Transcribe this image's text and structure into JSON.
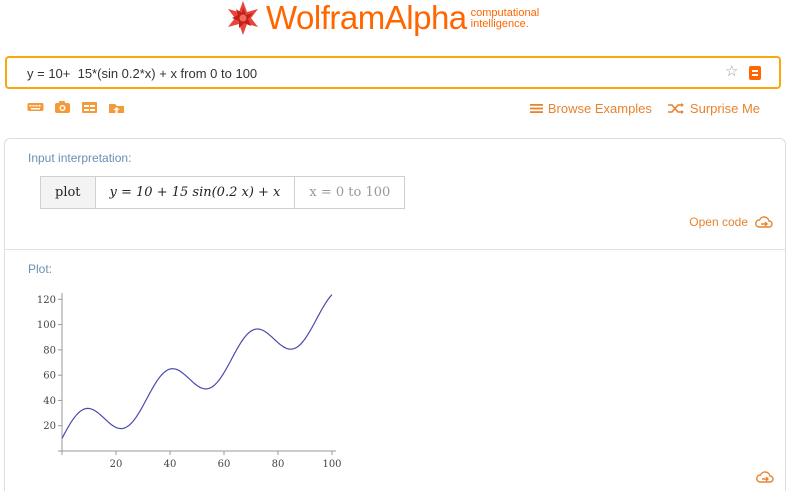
{
  "logo": {
    "brand_part1": "Wolfram",
    "brand_part2": "Alpha",
    "tagline_line1": "computational",
    "tagline_line2": "intelligence."
  },
  "search": {
    "value": "y = 10+  15*(sin 0.2*x) + x from 0 to 100",
    "fav_icon": "star-icon",
    "go_icon": "equals-icon"
  },
  "toolbar": {
    "tools": [
      "keyboard-icon",
      "camera-icon",
      "table-icon",
      "upload-icon"
    ],
    "browse_label": "Browse Examples",
    "surprise_label": "Surprise Me"
  },
  "input_interpretation": {
    "title": "Input interpretation:",
    "cells": [
      "plot",
      "y = 10 + 15 sin(0.2 x) + x",
      "x = 0 to 100"
    ],
    "open_code": "Open code"
  },
  "plot_pod": {
    "title": "Plot:"
  },
  "colors": {
    "accent": "#ff6600",
    "link": "#e8832e",
    "pod_title": "#6a8fb6",
    "curve": "#4b4bab",
    "search_border": "#f7a80f"
  },
  "chart_data": {
    "type": "line",
    "function": "y = 10 + 15 sin(0.2 x) + x",
    "xlim": [
      0,
      100
    ],
    "ylim": [
      0,
      125
    ],
    "xticks": [
      20,
      40,
      60,
      80,
      100
    ],
    "yticks": [
      20,
      40,
      60,
      80,
      100,
      120
    ],
    "series": [
      {
        "x": [
          0,
          5,
          8,
          10,
          15,
          20,
          25,
          30,
          35,
          40,
          45,
          50,
          55,
          60,
          65,
          70,
          75,
          80,
          85,
          90,
          95,
          100
        ],
        "values": [
          10.0,
          27.6,
          32.5,
          33.6,
          27.1,
          18.6,
          21.0,
          34.2,
          48.0,
          63.7,
          66.1,
          51.8,
          44.9,
          51.0,
          77.7,
          94.7,
          95.5,
          80.2,
          90.6,
          104.3,
          118.6,
          123.6
        ]
      }
    ]
  }
}
